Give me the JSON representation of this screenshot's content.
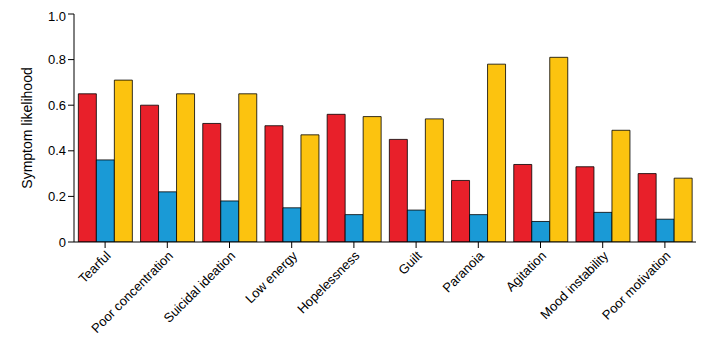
{
  "chart_data": {
    "type": "bar",
    "y_label": "Symptom likelihood",
    "categories": [
      "Tearful",
      "Poor concentration",
      "Suicidal ideation",
      "Low energy",
      "Hopelessness",
      "Guilt",
      "Paranoia",
      "Agitation",
      "Mood instability",
      "Poor motivation"
    ],
    "series": [
      {
        "color": "#e8202a",
        "values": [
          0.65,
          0.6,
          0.52,
          0.51,
          0.56,
          0.45,
          0.27,
          0.34,
          0.33,
          0.3
        ]
      },
      {
        "color": "#1a9ad6",
        "values": [
          0.36,
          0.22,
          0.18,
          0.15,
          0.12,
          0.14,
          0.12,
          0.09,
          0.13,
          0.1
        ]
      },
      {
        "color": "#fcc30f",
        "values": [
          0.71,
          0.65,
          0.65,
          0.47,
          0.55,
          0.54,
          0.78,
          0.81,
          0.49,
          0.28
        ]
      }
    ],
    "ylim": [
      0,
      1
    ],
    "yticks": [
      0,
      0.2,
      0.4,
      0.6,
      0.8,
      {
        "value": 1,
        "label": "1.0"
      }
    ],
    "grid": false
  }
}
